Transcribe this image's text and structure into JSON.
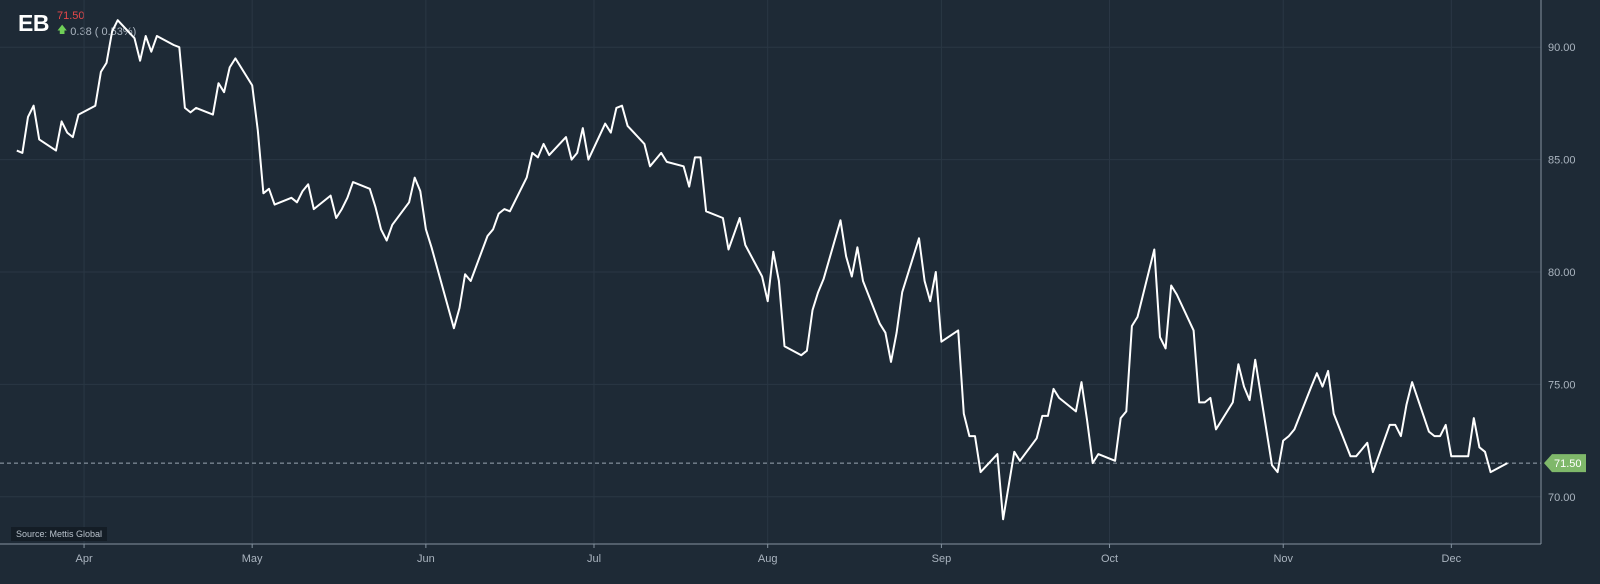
{
  "header": {
    "ticker": "EB",
    "price": "71.50",
    "change_arrow": "up-arrow-icon",
    "change": "0.38 ( 0.53%)"
  },
  "source": "Source: Mettis Global",
  "colors": {
    "background": "#1e2a36",
    "line": "#ffffff",
    "price_tag": "#7fb86a",
    "price_text": "#e8484a",
    "up_arrow": "#6fcf57",
    "grid": "#2a3744",
    "axis_text": "#aab4bf"
  },
  "chart_data": {
    "type": "line",
    "title": "",
    "xlabel": "",
    "ylabel": "",
    "ylim": [
      67.9,
      92.1
    ],
    "y_ticks": [
      "70.00",
      "75.00",
      "80.00",
      "85.00",
      "90.00"
    ],
    "y_tick_values": [
      70,
      75,
      80,
      85,
      90
    ],
    "x_tick_labels": [
      "Apr",
      "May",
      "Jun",
      "Jul",
      "Aug",
      "Sep",
      "Oct",
      "Nov",
      "Dec"
    ],
    "x_tick_dates": [
      "2023-04-01",
      "2023-05-01",
      "2023-06-01",
      "2023-07-01",
      "2023-08-01",
      "2023-09-01",
      "2023-10-01",
      "2023-11-01",
      "2023-12-01"
    ],
    "last_price_label": "71.50",
    "last_price_value": 71.5,
    "grid": true,
    "series": [
      {
        "x": [
          "2023-03-20",
          "2023-03-21",
          "2023-03-22",
          "2023-03-23",
          "2023-03-24",
          "2023-03-27",
          "2023-03-28",
          "2023-03-29",
          "2023-03-30",
          "2023-03-31",
          "2023-04-03",
          "2023-04-04",
          "2023-04-05",
          "2023-04-06",
          "2023-04-07",
          "2023-04-10",
          "2023-04-11",
          "2023-04-12",
          "2023-04-13",
          "2023-04-14",
          "2023-04-17",
          "2023-04-18",
          "2023-04-19",
          "2023-04-20",
          "2023-04-21",
          "2023-04-24",
          "2023-04-25",
          "2023-04-26",
          "2023-04-27",
          "2023-04-28",
          "2023-05-01",
          "2023-05-02",
          "2023-05-03",
          "2023-05-04",
          "2023-05-05",
          "2023-05-08",
          "2023-05-09",
          "2023-05-10",
          "2023-05-11",
          "2023-05-12",
          "2023-05-15",
          "2023-05-16",
          "2023-05-17",
          "2023-05-18",
          "2023-05-19",
          "2023-05-22",
          "2023-05-23",
          "2023-05-24",
          "2023-05-25",
          "2023-05-26",
          "2023-05-29",
          "2023-05-30",
          "2023-05-31",
          "2023-06-01",
          "2023-06-02",
          "2023-06-05",
          "2023-06-06",
          "2023-06-07",
          "2023-06-08",
          "2023-06-09",
          "2023-06-12",
          "2023-06-13",
          "2023-06-14",
          "2023-06-15",
          "2023-06-16",
          "2023-06-19",
          "2023-06-20",
          "2023-06-21",
          "2023-06-22",
          "2023-06-23",
          "2023-06-26",
          "2023-06-27",
          "2023-06-28",
          "2023-06-29",
          "2023-06-30",
          "2023-07-03",
          "2023-07-04",
          "2023-07-05",
          "2023-07-06",
          "2023-07-07",
          "2023-07-10",
          "2023-07-11",
          "2023-07-12",
          "2023-07-13",
          "2023-07-14",
          "2023-07-17",
          "2023-07-18",
          "2023-07-19",
          "2023-07-20",
          "2023-07-21",
          "2023-07-24",
          "2023-07-25",
          "2023-07-26",
          "2023-07-27",
          "2023-07-28",
          "2023-07-31",
          "2023-08-01",
          "2023-08-02",
          "2023-08-03",
          "2023-08-04",
          "2023-08-07",
          "2023-08-08",
          "2023-08-09",
          "2023-08-10",
          "2023-08-11",
          "2023-08-14",
          "2023-08-15",
          "2023-08-16",
          "2023-08-17",
          "2023-08-18",
          "2023-08-21",
          "2023-08-22",
          "2023-08-23",
          "2023-08-24",
          "2023-08-25",
          "2023-08-28",
          "2023-08-29",
          "2023-08-30",
          "2023-08-31",
          "2023-09-01",
          "2023-09-04",
          "2023-09-05",
          "2023-09-06",
          "2023-09-07",
          "2023-09-08",
          "2023-09-11",
          "2023-09-12",
          "2023-09-13",
          "2023-09-14",
          "2023-09-15",
          "2023-09-18",
          "2023-09-19",
          "2023-09-20",
          "2023-09-21",
          "2023-09-22",
          "2023-09-25",
          "2023-09-26",
          "2023-09-27",
          "2023-09-28",
          "2023-09-29",
          "2023-10-02",
          "2023-10-03",
          "2023-10-04",
          "2023-10-05",
          "2023-10-06",
          "2023-10-09",
          "2023-10-10",
          "2023-10-11",
          "2023-10-12",
          "2023-10-13",
          "2023-10-16",
          "2023-10-17",
          "2023-10-18",
          "2023-10-19",
          "2023-10-20",
          "2023-10-23",
          "2023-10-24",
          "2023-10-25",
          "2023-10-26",
          "2023-10-27",
          "2023-10-30",
          "2023-10-31",
          "2023-11-01",
          "2023-11-02",
          "2023-11-03",
          "2023-11-06",
          "2023-11-07",
          "2023-11-08",
          "2023-11-09",
          "2023-11-10",
          "2023-11-13",
          "2023-11-14",
          "2023-11-15",
          "2023-11-16",
          "2023-11-17",
          "2023-11-20",
          "2023-11-21",
          "2023-11-22",
          "2023-11-23",
          "2023-11-24",
          "2023-11-27",
          "2023-11-28",
          "2023-11-29",
          "2023-11-30",
          "2023-12-01",
          "2023-12-04",
          "2023-12-05",
          "2023-12-06",
          "2023-12-07",
          "2023-12-08",
          "2023-12-11"
        ],
        "values": [
          85.4,
          85.3,
          86.9,
          87.4,
          85.9,
          85.4,
          86.7,
          86.2,
          86.0,
          87.0,
          87.4,
          88.9,
          89.3,
          90.7,
          91.2,
          90.4,
          89.4,
          90.5,
          89.8,
          90.5,
          90.1,
          90.0,
          87.3,
          87.1,
          87.3,
          87.0,
          88.4,
          88.0,
          89.1,
          89.5,
          88.3,
          86.3,
          83.5,
          83.7,
          83.0,
          83.3,
          83.1,
          83.6,
          83.9,
          82.8,
          83.4,
          82.4,
          82.8,
          83.3,
          84.0,
          83.7,
          82.9,
          81.9,
          81.4,
          82.1,
          83.1,
          84.2,
          83.6,
          81.9,
          81.1,
          78.4,
          77.5,
          78.4,
          79.9,
          79.6,
          81.6,
          81.9,
          82.6,
          82.8,
          82.7,
          84.2,
          85.3,
          85.1,
          85.7,
          85.2,
          86.0,
          85.0,
          85.3,
          86.4,
          85.0,
          86.6,
          86.2,
          87.3,
          87.4,
          86.5,
          85.7,
          84.7,
          85.0,
          85.3,
          84.9,
          84.7,
          83.8,
          85.1,
          85.1,
          82.7,
          82.4,
          81.0,
          81.7,
          82.4,
          81.2,
          79.8,
          78.7,
          80.9,
          79.6,
          76.7,
          76.3,
          76.5,
          78.3,
          79.1,
          79.7,
          82.3,
          80.7,
          79.8,
          81.1,
          79.6,
          77.7,
          77.3,
          76.0,
          77.3,
          79.1,
          81.5,
          79.6,
          78.7,
          80.0,
          76.9,
          77.4,
          73.7,
          72.7,
          72.7,
          71.1,
          71.9,
          69.0,
          70.5,
          72.0,
          71.6,
          72.6,
          73.6,
          73.6,
          74.8,
          74.4,
          73.8,
          75.1,
          73.4,
          71.5,
          71.9,
          71.6,
          73.5,
          73.8,
          77.6,
          78.0,
          81.0,
          77.1,
          76.6,
          79.4,
          79.0,
          77.4,
          74.2,
          74.2,
          74.4,
          73.0,
          74.2,
          75.9,
          74.9,
          74.3,
          76.1,
          71.4,
          71.1,
          72.5,
          72.7,
          73.0,
          74.9,
          75.5,
          74.9,
          75.6,
          73.7,
          71.8,
          71.8,
          72.1,
          72.4,
          71.1,
          73.2,
          73.2,
          72.7,
          74.1,
          75.1,
          72.9,
          72.7,
          72.7,
          73.2,
          71.8,
          71.8,
          73.5,
          72.2,
          72.0,
          71.1,
          71.5
        ]
      }
    ]
  }
}
